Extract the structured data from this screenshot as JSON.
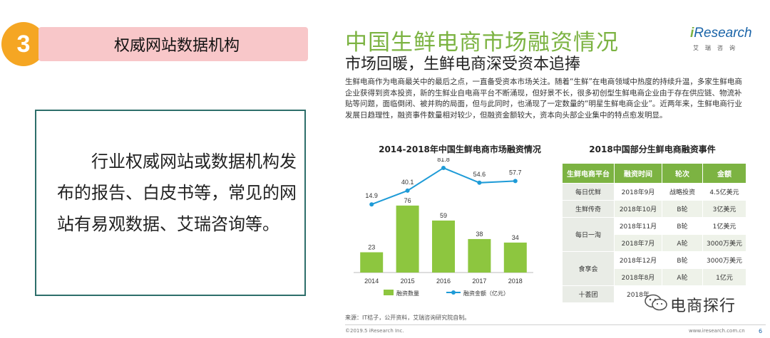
{
  "left": {
    "number": "3",
    "heading": "权威网站数据机构",
    "body": "行业权威网站或数据机构发布的报告、白皮书等，常见的网站有易观数据、艾瑞咨询等。"
  },
  "slide": {
    "title": "中国生鲜电商市场融资情况",
    "subtitle": "市场回暖，生鲜电商深受资本追捧",
    "logo_i": "i",
    "logo_rest": "Research",
    "logo_sub": "艾瑞咨询",
    "paragraph": "生鲜电商作为电商最关中的最后之点，一直备受资本市场关注。随着“生鲜”在电商领域中热度的持续升温，多家生鲜电商企业获得到资本投资，新的生鲜业自电商平台不断涌现，但好景不长，很多初创型生鲜电商企业由于存在供应链、物流补贴等问题，面临倒闭、被并购的局面，但与此同时，也涌现了一定数量的“明星生鲜电商企业”。近两年来，生鲜电商行业发展日趋理性，融资事件数量相对较少，但融资金额较大，资本向头部企业集中的特点愈发明显。",
    "chart_title": "2014-2018年中国生鲜电商市场融资情况",
    "table_title": "2018中国部分生鲜电商融资事件",
    "source": "来源：IT桔子，公开资料，艾瑞咨询研究院自制。",
    "copyright": "©2019.5 iResearch Inc.",
    "site": "www.iresearch.com.cn",
    "page": "6"
  },
  "chart_data": {
    "type": "bar",
    "categories": [
      "2014",
      "2015",
      "2016",
      "2017",
      "2018"
    ],
    "series": [
      {
        "name": "融资数量",
        "type": "bar",
        "values": [
          23,
          76,
          59,
          38,
          34
        ],
        "color": "#8dc63f"
      },
      {
        "name": "融资金额（亿元）",
        "type": "line",
        "values": [
          14.9,
          40.1,
          81.8,
          54.6,
          57.7
        ],
        "color": "#1e9bd7"
      }
    ],
    "bar_ylim": [
      0,
      130
    ],
    "line_ylim": [
      -110,
      100
    ]
  },
  "table": {
    "headers": [
      "生鲜电商平台",
      "融资时间",
      "轮次",
      "金额"
    ],
    "rows": [
      {
        "platform": "每日优鲜",
        "time": "2018年9月",
        "round": "战略投资",
        "amount": "4.5亿美元",
        "span": 1
      },
      {
        "platform": "生鲜传奇",
        "time": "2018年10月",
        "round": "B轮",
        "amount": "3亿美元",
        "span": 1
      },
      {
        "platform": "每日一淘",
        "time": "2018年11月",
        "round": "B轮",
        "amount": "1亿美元",
        "span": 2
      },
      {
        "platform": "",
        "time": "2018年7月",
        "round": "A轮",
        "amount": "3000万美元",
        "span": 0
      },
      {
        "platform": "食享会",
        "time": "2018年12月",
        "round": "B轮",
        "amount": "3000万美元",
        "span": 2
      },
      {
        "platform": "",
        "time": "2018年8月",
        "round": "A轮",
        "amount": "1亿元",
        "span": 0
      },
      {
        "platform": "十荟团",
        "time": "2018年",
        "round": "",
        "amount": "",
        "span": 1
      }
    ]
  },
  "watermark": {
    "text": "电商探行",
    "icon": "wechat-icon"
  }
}
